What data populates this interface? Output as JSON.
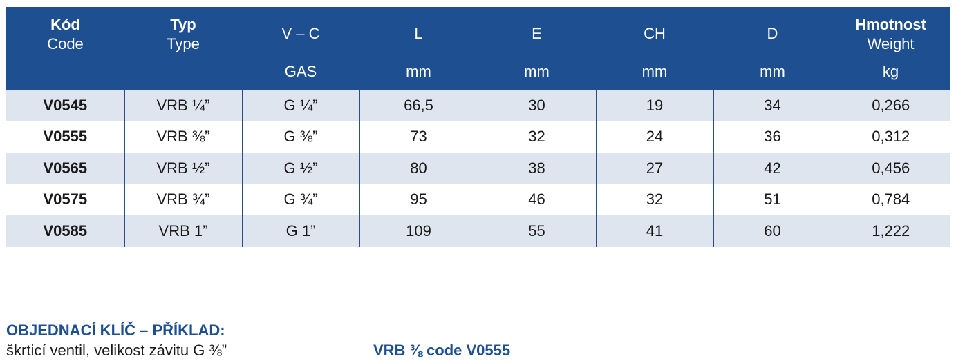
{
  "table": {
    "headers": [
      {
        "top": "Kód",
        "top_bold": true,
        "sub": "Code",
        "unit": ""
      },
      {
        "top": "Typ",
        "top_bold": true,
        "sub": "Type",
        "unit": ""
      },
      {
        "top": "V – C",
        "top_bold": false,
        "sub": "",
        "unit": "GAS"
      },
      {
        "top": "L",
        "top_bold": false,
        "sub": "",
        "unit": "mm"
      },
      {
        "top": "E",
        "top_bold": false,
        "sub": "",
        "unit": "mm"
      },
      {
        "top": "CH",
        "top_bold": false,
        "sub": "",
        "unit": "mm"
      },
      {
        "top": "D",
        "top_bold": false,
        "sub": "",
        "unit": "mm"
      },
      {
        "top": "Hmotnost",
        "top_bold": true,
        "sub": "Weight",
        "unit": "kg"
      }
    ],
    "rows": [
      [
        "V0545",
        "VRB ¼”",
        "G ¼”",
        "66,5",
        "30",
        "19",
        "34",
        "0,266"
      ],
      [
        "V0555",
        "VRB ⅜”",
        "G ⅜”",
        "73",
        "32",
        "24",
        "36",
        "0,312"
      ],
      [
        "V0565",
        "VRB ½”",
        "G ½”",
        "80",
        "38",
        "27",
        "42",
        "0,456"
      ],
      [
        "V0575",
        "VRB ¾”",
        "G ¾”",
        "95",
        "46",
        "32",
        "51",
        "0,784"
      ],
      [
        "V0585",
        "VRB 1”",
        "G 1”",
        "109",
        "55",
        "41",
        "60",
        "1,222"
      ]
    ]
  },
  "order_key": {
    "title": "OBJEDNACÍ KLÍČ – PŘÍKLAD:",
    "description": "škrticí ventil, velikost závitu G ⅜”",
    "example": "VRB ⅜ code V0555"
  },
  "colors": {
    "header_bg": "#1d4f91",
    "stripe": "#dfe5ee",
    "accent": "#1d4f91"
  }
}
